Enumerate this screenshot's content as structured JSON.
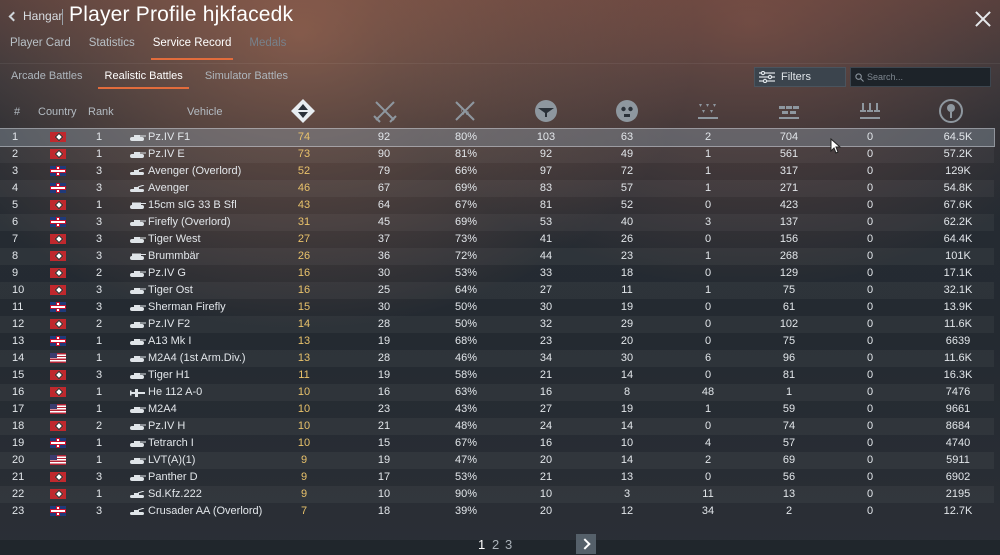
{
  "header": {
    "back_label": "Hangar",
    "title": "Player Profile hjkfacedk",
    "tabs": [
      {
        "label": "Player Card",
        "state": "normal"
      },
      {
        "label": "Statistics",
        "state": "normal"
      },
      {
        "label": "Service Record",
        "state": "active"
      },
      {
        "label": "Medals",
        "state": "disabled"
      }
    ]
  },
  "modes": {
    "tabs": [
      {
        "label": "Arcade Battles",
        "state": "normal"
      },
      {
        "label": "Realistic Battles",
        "state": "active"
      },
      {
        "label": "Simulator Battles",
        "state": "normal"
      }
    ],
    "filters_label": "Filters",
    "search_placeholder": "Search..."
  },
  "table": {
    "headers": {
      "num": "#",
      "country": "Country",
      "rank": "Rank",
      "vehicle": "Vehicle"
    },
    "stat_icons": [
      "battles-icon",
      "victories-icon",
      "win-rate-icon",
      "respawns-icon",
      "deaths-icon",
      "air-kills-icon",
      "ground-kills-icon",
      "naval-kills-icon",
      "score-icon"
    ],
    "rows": [
      {
        "num": "1",
        "country": "germany",
        "rank": "1",
        "type": "tank",
        "vehicle": "Pz.IV F1",
        "battles": "74",
        "victories": "92",
        "winrate": "80%",
        "respawns": "103",
        "deaths": "63",
        "air": "2",
        "ground": "704",
        "naval": "0",
        "score": "64.5K"
      },
      {
        "num": "2",
        "country": "germany",
        "rank": "1",
        "type": "tank",
        "vehicle": "Pz.IV E",
        "battles": "73",
        "victories": "90",
        "winrate": "81%",
        "respawns": "92",
        "deaths": "49",
        "air": "1",
        "ground": "561",
        "naval": "0",
        "score": "57.2K"
      },
      {
        "num": "3",
        "country": "uk",
        "rank": "3",
        "type": "spaa",
        "vehicle": "Avenger (Overlord)",
        "battles": "52",
        "victories": "79",
        "winrate": "66%",
        "respawns": "97",
        "deaths": "72",
        "air": "1",
        "ground": "317",
        "naval": "0",
        "score": "129K"
      },
      {
        "num": "4",
        "country": "uk",
        "rank": "3",
        "type": "spaa",
        "vehicle": "Avenger",
        "battles": "46",
        "victories": "67",
        "winrate": "69%",
        "respawns": "83",
        "deaths": "57",
        "air": "1",
        "ground": "271",
        "naval": "0",
        "score": "54.8K"
      },
      {
        "num": "5",
        "country": "germany",
        "rank": "1",
        "type": "spg",
        "vehicle": "15cm sIG 33 B Sfl",
        "battles": "43",
        "victories": "64",
        "winrate": "67%",
        "respawns": "81",
        "deaths": "52",
        "air": "0",
        "ground": "423",
        "naval": "0",
        "score": "67.6K"
      },
      {
        "num": "6",
        "country": "uk",
        "rank": "3",
        "type": "tank",
        "vehicle": "Firefly (Overlord)",
        "battles": "31",
        "victories": "45",
        "winrate": "69%",
        "respawns": "53",
        "deaths": "40",
        "air": "3",
        "ground": "137",
        "naval": "0",
        "score": "62.2K"
      },
      {
        "num": "7",
        "country": "germany",
        "rank": "3",
        "type": "tank",
        "vehicle": "Tiger West",
        "battles": "27",
        "victories": "37",
        "winrate": "73%",
        "respawns": "41",
        "deaths": "26",
        "air": "0",
        "ground": "156",
        "naval": "0",
        "score": "64.4K"
      },
      {
        "num": "8",
        "country": "germany",
        "rank": "3",
        "type": "spg",
        "vehicle": "Brummbär",
        "battles": "26",
        "victories": "36",
        "winrate": "72%",
        "respawns": "44",
        "deaths": "23",
        "air": "1",
        "ground": "268",
        "naval": "0",
        "score": "101K"
      },
      {
        "num": "9",
        "country": "germany",
        "rank": "2",
        "type": "tank",
        "vehicle": "Pz.IV G",
        "battles": "16",
        "victories": "30",
        "winrate": "53%",
        "respawns": "33",
        "deaths": "18",
        "air": "0",
        "ground": "129",
        "naval": "0",
        "score": "17.1K"
      },
      {
        "num": "10",
        "country": "germany",
        "rank": "3",
        "type": "tank",
        "vehicle": "Tiger Ost",
        "battles": "16",
        "victories": "25",
        "winrate": "64%",
        "respawns": "27",
        "deaths": "11",
        "air": "1",
        "ground": "75",
        "naval": "0",
        "score": "32.1K"
      },
      {
        "num": "11",
        "country": "uk",
        "rank": "3",
        "type": "tank",
        "vehicle": "Sherman Firefly",
        "battles": "15",
        "victories": "30",
        "winrate": "50%",
        "respawns": "30",
        "deaths": "19",
        "air": "0",
        "ground": "61",
        "naval": "0",
        "score": "13.9K"
      },
      {
        "num": "12",
        "country": "germany",
        "rank": "2",
        "type": "tank",
        "vehicle": "Pz.IV F2",
        "battles": "14",
        "victories": "28",
        "winrate": "50%",
        "respawns": "32",
        "deaths": "29",
        "air": "0",
        "ground": "102",
        "naval": "0",
        "score": "11.6K"
      },
      {
        "num": "13",
        "country": "uk",
        "rank": "1",
        "type": "tank",
        "vehicle": "A13 Mk I",
        "battles": "13",
        "victories": "19",
        "winrate": "68%",
        "respawns": "23",
        "deaths": "20",
        "air": "0",
        "ground": "75",
        "naval": "0",
        "score": "6639"
      },
      {
        "num": "14",
        "country": "usa",
        "rank": "1",
        "type": "tank",
        "vehicle": "M2A4 (1st Arm.Div.)",
        "battles": "13",
        "victories": "28",
        "winrate": "46%",
        "respawns": "34",
        "deaths": "30",
        "air": "6",
        "ground": "96",
        "naval": "0",
        "score": "11.6K"
      },
      {
        "num": "15",
        "country": "germany",
        "rank": "3",
        "type": "tank",
        "vehicle": "Tiger H1",
        "battles": "11",
        "victories": "19",
        "winrate": "58%",
        "respawns": "21",
        "deaths": "14",
        "air": "0",
        "ground": "81",
        "naval": "0",
        "score": "16.3K"
      },
      {
        "num": "16",
        "country": "germany",
        "rank": "1",
        "type": "plane",
        "vehicle": "He 112 A-0",
        "battles": "10",
        "victories": "16",
        "winrate": "63%",
        "respawns": "16",
        "deaths": "8",
        "air": "48",
        "ground": "1",
        "naval": "0",
        "score": "7476"
      },
      {
        "num": "17",
        "country": "usa",
        "rank": "1",
        "type": "tank",
        "vehicle": "M2A4",
        "battles": "10",
        "victories": "23",
        "winrate": "43%",
        "respawns": "27",
        "deaths": "19",
        "air": "1",
        "ground": "59",
        "naval": "0",
        "score": "9661"
      },
      {
        "num": "18",
        "country": "germany",
        "rank": "2",
        "type": "tank",
        "vehicle": "Pz.IV H",
        "battles": "10",
        "victories": "21",
        "winrate": "48%",
        "respawns": "24",
        "deaths": "14",
        "air": "0",
        "ground": "74",
        "naval": "0",
        "score": "8684"
      },
      {
        "num": "19",
        "country": "uk",
        "rank": "1",
        "type": "tank",
        "vehicle": "Tetrarch I",
        "battles": "10",
        "victories": "15",
        "winrate": "67%",
        "respawns": "16",
        "deaths": "10",
        "air": "4",
        "ground": "57",
        "naval": "0",
        "score": "4740"
      },
      {
        "num": "20",
        "country": "usa",
        "rank": "1",
        "type": "tank",
        "vehicle": "LVT(A)(1)",
        "battles": "9",
        "victories": "19",
        "winrate": "47%",
        "respawns": "20",
        "deaths": "14",
        "air": "2",
        "ground": "69",
        "naval": "0",
        "score": "5911"
      },
      {
        "num": "21",
        "country": "germany",
        "rank": "3",
        "type": "tank",
        "vehicle": "Panther D",
        "battles": "9",
        "victories": "17",
        "winrate": "53%",
        "respawns": "21",
        "deaths": "13",
        "air": "0",
        "ground": "56",
        "naval": "0",
        "score": "6902"
      },
      {
        "num": "22",
        "country": "germany",
        "rank": "1",
        "type": "spaa",
        "vehicle": "Sd.Kfz.222",
        "battles": "9",
        "victories": "10",
        "winrate": "90%",
        "respawns": "10",
        "deaths": "3",
        "air": "11",
        "ground": "13",
        "naval": "0",
        "score": "2195"
      },
      {
        "num": "23",
        "country": "uk",
        "rank": "3",
        "type": "spaa",
        "vehicle": "Crusader AA (Overlord)",
        "battles": "7",
        "victories": "18",
        "winrate": "39%",
        "respawns": "20",
        "deaths": "12",
        "air": "34",
        "ground": "2",
        "naval": "0",
        "score": "12.7K"
      }
    ]
  },
  "pager": {
    "pages": [
      "1",
      "2",
      "3"
    ],
    "current": "1"
  },
  "colors": {
    "accent": "#e26c3c",
    "battles": "#e9c26b",
    "selected_row": "#7f8b97"
  }
}
